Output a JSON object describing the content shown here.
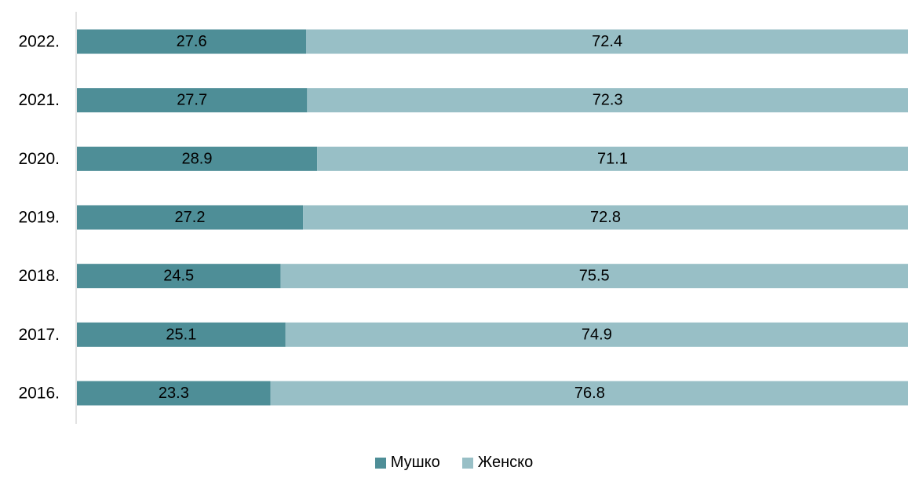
{
  "chart_data": {
    "type": "bar",
    "orientation": "horizontal",
    "stacked": true,
    "categories": [
      "2022.",
      "2021.",
      "2020.",
      "2019.",
      "2018.",
      "2017.",
      "2016."
    ],
    "series": [
      {
        "name": "Мушко",
        "color": "#4e8e97",
        "values": [
          27.6,
          27.7,
          28.9,
          27.2,
          24.5,
          25.1,
          23.3
        ]
      },
      {
        "name": "Женско",
        "color": "#98bfc6",
        "values": [
          72.4,
          72.3,
          71.1,
          72.8,
          75.5,
          74.9,
          76.8
        ]
      }
    ],
    "xlim": [
      0,
      100
    ],
    "grid": false,
    "legend_position": "bottom"
  }
}
